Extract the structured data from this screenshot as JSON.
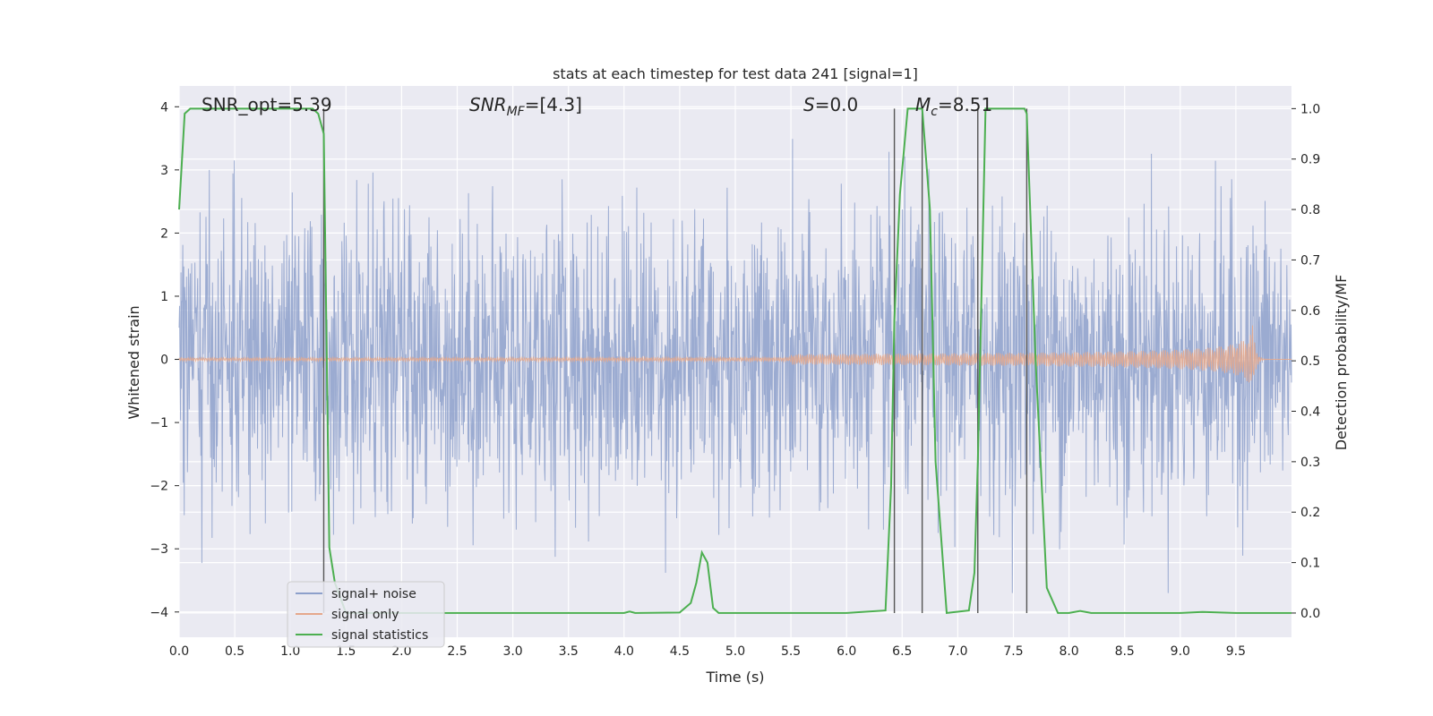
{
  "chart_data": {
    "type": "line",
    "title": "stats at each timestep for test data 241 [signal=1]",
    "xlabel": "Time (s)",
    "ylabel": "Whitened strain",
    "ylabel_right": "Detection probability/MF",
    "xlim": [
      0.0,
      10.0
    ],
    "ylim": [
      -4.4,
      4.33
    ],
    "ylim_right": [
      -0.048,
      1.045
    ],
    "grid": true,
    "legend_position": "lower-left",
    "x_ticks": [
      "0.0",
      "0.5",
      "1.0",
      "1.5",
      "2.0",
      "2.5",
      "3.0",
      "3.5",
      "4.0",
      "4.5",
      "5.0",
      "5.5",
      "6.0",
      "6.5",
      "7.0",
      "7.5",
      "8.0",
      "8.5",
      "9.0",
      "9.5"
    ],
    "x_tick_values": [
      0.0,
      0.5,
      1.0,
      1.5,
      2.0,
      2.5,
      3.0,
      3.5,
      4.0,
      4.5,
      5.0,
      5.5,
      6.0,
      6.5,
      7.0,
      7.5,
      8.0,
      8.5,
      9.0,
      9.5
    ],
    "y_ticks": [
      "−4",
      "−3",
      "−2",
      "−1",
      "0",
      "1",
      "2",
      "3",
      "4"
    ],
    "y_tick_values": [
      -4,
      -3,
      -2,
      -1,
      0,
      1,
      2,
      3,
      4
    ],
    "y_right_ticks": [
      "0.0",
      "0.1",
      "0.2",
      "0.3",
      "0.4",
      "0.5",
      "0.6",
      "0.7",
      "0.8",
      "0.9",
      "1.0"
    ],
    "y_right_tick_values": [
      0.0,
      0.1,
      0.2,
      0.3,
      0.4,
      0.5,
      0.6,
      0.7,
      0.8,
      0.9,
      1.0
    ],
    "annotations": {
      "snr_opt": "SNR_opt=5.39",
      "snr_mf_prefix": "SNR",
      "snr_mf_sub": "MF",
      "snr_mf_value": "=[4.3]",
      "s_symbol": "S",
      "s_value": "=0.0",
      "mc_symbol": "M",
      "mc_sub": "c",
      "mc_value": "=8.51"
    },
    "vertical_lines_x": [
      1.3,
      6.43,
      6.68,
      7.18,
      7.62
    ],
    "series": [
      {
        "name": "signal+ noise",
        "color": "#8da0cb",
        "noise_std": 1.0,
        "noise_peak_range": [
          -3.7,
          4.0
        ]
      },
      {
        "name": "signal only",
        "color": "#e5a88c",
        "chirp_start": 5.5,
        "chirp_merger": 9.65,
        "chirp_peak_amplitude": 0.6
      },
      {
        "name": "signal statistics",
        "color": "#4caf50",
        "axis": "right",
        "x": [
          0.0,
          0.05,
          0.1,
          0.2,
          1.2,
          1.25,
          1.3,
          1.35,
          1.4,
          1.5,
          2.0,
          3.0,
          4.0,
          4.05,
          4.1,
          4.5,
          4.6,
          4.65,
          4.7,
          4.75,
          4.8,
          4.85,
          4.9,
          5.0,
          6.0,
          6.35,
          6.4,
          6.43,
          6.48,
          6.55,
          6.68,
          6.75,
          6.8,
          6.9,
          7.1,
          7.15,
          7.18,
          7.25,
          7.6,
          7.62,
          7.7,
          7.8,
          7.9,
          8.0,
          8.1,
          8.2,
          8.3,
          9.0,
          9.2,
          9.5,
          10.0
        ],
        "y": [
          0.8,
          0.99,
          1.0,
          1.0,
          1.0,
          0.99,
          0.95,
          0.13,
          0.06,
          0.0,
          0.0,
          0.0,
          0.0,
          0.003,
          0.0,
          0.001,
          0.02,
          0.06,
          0.12,
          0.1,
          0.01,
          0.0,
          0.0,
          0.0,
          0.0,
          0.005,
          0.25,
          0.58,
          0.83,
          1.0,
          1.0,
          0.8,
          0.3,
          0.0,
          0.005,
          0.08,
          0.3,
          1.0,
          1.0,
          0.99,
          0.5,
          0.05,
          0.0,
          0.0,
          0.004,
          0.0,
          0.0,
          0.0,
          0.002,
          0.0,
          0.0
        ]
      }
    ]
  }
}
